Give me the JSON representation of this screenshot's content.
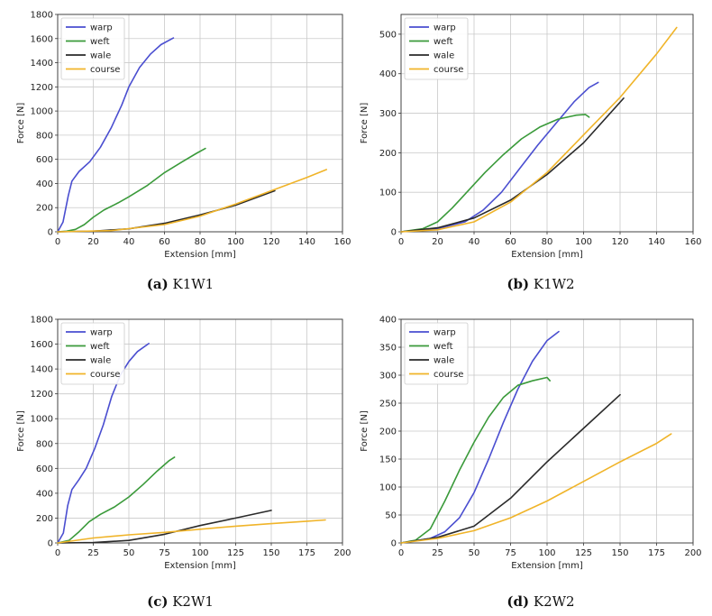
{
  "colors": {
    "warp": "#4a4ed0",
    "weft": "#3a9a3a",
    "wale": "#2a2a2a",
    "course": "#f0b429",
    "grid": "#c9c9c9"
  },
  "chart_data": [
    {
      "type": "line",
      "caption_id": "(a)",
      "caption_name": " K1W1",
      "xlabel": "Extension [mm]",
      "ylabel": "Force [N]",
      "xlim": [
        0,
        160
      ],
      "ylim": [
        0,
        1800
      ],
      "xticks": [
        0,
        20,
        40,
        60,
        80,
        100,
        120,
        140,
        160
      ],
      "yticks": [
        0,
        200,
        400,
        600,
        800,
        1000,
        1200,
        1400,
        1600,
        1800
      ],
      "legend": "top-left",
      "series": [
        {
          "name": "warp",
          "color_key": "warp",
          "points": [
            [
              0,
              0
            ],
            [
              3,
              80
            ],
            [
              6,
              300
            ],
            [
              8,
              420
            ],
            [
              12,
              500
            ],
            [
              18,
              580
            ],
            [
              24,
              700
            ],
            [
              30,
              860
            ],
            [
              36,
              1050
            ],
            [
              40,
              1200
            ],
            [
              46,
              1360
            ],
            [
              52,
              1470
            ],
            [
              58,
              1550
            ],
            [
              65,
              1605
            ]
          ]
        },
        {
          "name": "weft",
          "color_key": "weft",
          "points": [
            [
              0,
              0
            ],
            [
              5,
              5
            ],
            [
              10,
              20
            ],
            [
              15,
              60
            ],
            [
              20,
              120
            ],
            [
              26,
              180
            ],
            [
              34,
              240
            ],
            [
              40,
              290
            ],
            [
              50,
              380
            ],
            [
              60,
              490
            ],
            [
              70,
              580
            ],
            [
              78,
              650
            ],
            [
              83,
              690
            ]
          ]
        },
        {
          "name": "wale",
          "color_key": "wale",
          "points": [
            [
              0,
              0
            ],
            [
              20,
              5
            ],
            [
              40,
              25
            ],
            [
              60,
              70
            ],
            [
              80,
              140
            ],
            [
              100,
              220
            ],
            [
              122,
              340
            ]
          ]
        },
        {
          "name": "course",
          "color_key": "course",
          "points": [
            [
              0,
              0
            ],
            [
              30,
              10
            ],
            [
              60,
              60
            ],
            [
              80,
              130
            ],
            [
              100,
              230
            ],
            [
              120,
              340
            ],
            [
              140,
              450
            ],
            [
              151,
              515
            ]
          ]
        }
      ]
    },
    {
      "type": "line",
      "caption_id": "(b)",
      "caption_name": " K1W2",
      "xlabel": "Extension [mm]",
      "ylabel": "Force [N]",
      "xlim": [
        0,
        160
      ],
      "ylim": [
        0,
        550
      ],
      "xticks": [
        0,
        20,
        40,
        60,
        80,
        100,
        120,
        140,
        160
      ],
      "yticks": [
        0,
        100,
        200,
        300,
        400,
        500
      ],
      "legend": "top-left",
      "series": [
        {
          "name": "warp",
          "color_key": "warp",
          "points": [
            [
              0,
              0
            ],
            [
              20,
              8
            ],
            [
              35,
              25
            ],
            [
              45,
              55
            ],
            [
              55,
              100
            ],
            [
              65,
              160
            ],
            [
              75,
              220
            ],
            [
              85,
              275
            ],
            [
              95,
              330
            ],
            [
              103,
              365
            ],
            [
              108,
              378
            ]
          ]
        },
        {
          "name": "weft",
          "color_key": "weft",
          "points": [
            [
              0,
              0
            ],
            [
              12,
              8
            ],
            [
              20,
              25
            ],
            [
              28,
              60
            ],
            [
              36,
              100
            ],
            [
              46,
              150
            ],
            [
              56,
              195
            ],
            [
              66,
              235
            ],
            [
              76,
              265
            ],
            [
              86,
              285
            ],
            [
              96,
              295
            ],
            [
              101,
              297
            ],
            [
              103,
              290
            ]
          ]
        },
        {
          "name": "wale",
          "color_key": "wale",
          "points": [
            [
              0,
              0
            ],
            [
              20,
              10
            ],
            [
              40,
              35
            ],
            [
              60,
              80
            ],
            [
              80,
              145
            ],
            [
              100,
              225
            ],
            [
              122,
              338
            ]
          ]
        },
        {
          "name": "course",
          "color_key": "course",
          "points": [
            [
              0,
              0
            ],
            [
              20,
              5
            ],
            [
              40,
              25
            ],
            [
              60,
              75
            ],
            [
              80,
              150
            ],
            [
              100,
              245
            ],
            [
              120,
              340
            ],
            [
              140,
              450
            ],
            [
              151,
              517
            ]
          ]
        }
      ]
    },
    {
      "type": "line",
      "caption_id": "(c)",
      "caption_name": " K2W1",
      "xlabel": "Extension [mm]",
      "ylabel": "Force [N]",
      "xlim": [
        0,
        200
      ],
      "ylim": [
        0,
        1800
      ],
      "xticks": [
        0,
        25,
        50,
        75,
        100,
        125,
        150,
        175,
        200
      ],
      "yticks": [
        0,
        200,
        400,
        600,
        800,
        1000,
        1200,
        1400,
        1600,
        1800
      ],
      "legend": "top-left",
      "series": [
        {
          "name": "warp",
          "color_key": "warp",
          "points": [
            [
              0,
              0
            ],
            [
              4,
              80
            ],
            [
              7,
              300
            ],
            [
              10,
              430
            ],
            [
              15,
              510
            ],
            [
              20,
              600
            ],
            [
              26,
              760
            ],
            [
              32,
              950
            ],
            [
              38,
              1180
            ],
            [
              44,
              1350
            ],
            [
              50,
              1460
            ],
            [
              56,
              1540
            ],
            [
              64,
              1605
            ]
          ]
        },
        {
          "name": "weft",
          "color_key": "weft",
          "points": [
            [
              0,
              0
            ],
            [
              8,
              20
            ],
            [
              15,
              90
            ],
            [
              22,
              170
            ],
            [
              30,
              230
            ],
            [
              40,
              290
            ],
            [
              50,
              370
            ],
            [
              60,
              470
            ],
            [
              70,
              580
            ],
            [
              78,
              660
            ],
            [
              82,
              690
            ]
          ]
        },
        {
          "name": "wale",
          "color_key": "wale",
          "points": [
            [
              0,
              0
            ],
            [
              25,
              3
            ],
            [
              50,
              20
            ],
            [
              75,
              70
            ],
            [
              100,
              140
            ],
            [
              125,
              200
            ],
            [
              150,
              262
            ]
          ]
        },
        {
          "name": "course",
          "color_key": "course",
          "points": [
            [
              0,
              0
            ],
            [
              25,
              40
            ],
            [
              50,
              65
            ],
            [
              75,
              85
            ],
            [
              100,
              110
            ],
            [
              125,
              135
            ],
            [
              150,
              155
            ],
            [
              175,
              175
            ],
            [
              188,
              185
            ]
          ]
        }
      ]
    },
    {
      "type": "line",
      "caption_id": "(d)",
      "caption_name": " K2W2",
      "xlabel": "Extension [mm]",
      "ylabel": "Force [N]",
      "xlim": [
        0,
        200
      ],
      "ylim": [
        0,
        400
      ],
      "xticks": [
        0,
        25,
        50,
        75,
        100,
        125,
        150,
        175,
        200
      ],
      "yticks": [
        0,
        50,
        100,
        150,
        200,
        250,
        300,
        350,
        400
      ],
      "legend": "top-left",
      "series": [
        {
          "name": "warp",
          "color_key": "warp",
          "points": [
            [
              0,
              0
            ],
            [
              20,
              8
            ],
            [
              30,
              20
            ],
            [
              40,
              45
            ],
            [
              50,
              90
            ],
            [
              60,
              150
            ],
            [
              70,
              215
            ],
            [
              80,
              275
            ],
            [
              90,
              325
            ],
            [
              100,
              362
            ],
            [
              108,
              378
            ]
          ]
        },
        {
          "name": "weft",
          "color_key": "weft",
          "points": [
            [
              0,
              0
            ],
            [
              10,
              5
            ],
            [
              20,
              25
            ],
            [
              30,
              75
            ],
            [
              40,
              130
            ],
            [
              50,
              180
            ],
            [
              60,
              225
            ],
            [
              70,
              260
            ],
            [
              80,
              282
            ],
            [
              90,
              290
            ],
            [
              100,
              296
            ],
            [
              102,
              290
            ]
          ]
        },
        {
          "name": "wale",
          "color_key": "wale",
          "points": [
            [
              0,
              0
            ],
            [
              25,
              10
            ],
            [
              50,
              30
            ],
            [
              75,
              80
            ],
            [
              100,
              145
            ],
            [
              125,
              205
            ],
            [
              150,
              265
            ]
          ]
        },
        {
          "name": "course",
          "color_key": "course",
          "points": [
            [
              0,
              0
            ],
            [
              25,
              8
            ],
            [
              50,
              22
            ],
            [
              75,
              45
            ],
            [
              100,
              75
            ],
            [
              125,
              110
            ],
            [
              150,
              145
            ],
            [
              175,
              178
            ],
            [
              185,
              195
            ]
          ]
        }
      ]
    }
  ]
}
